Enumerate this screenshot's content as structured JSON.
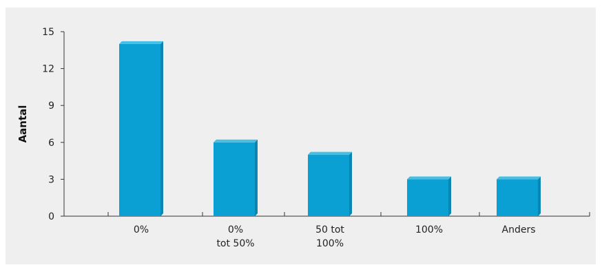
{
  "chart_data": {
    "type": "bar",
    "title": "",
    "xlabel": "",
    "ylabel": "Aantal",
    "categories": [
      [
        "0%"
      ],
      [
        "0%",
        "tot 50%"
      ],
      [
        "50 tot",
        "100%"
      ],
      [
        "100%"
      ],
      [
        "Anders"
      ]
    ],
    "values": [
      14,
      6,
      5,
      3,
      3
    ],
    "ylim": [
      0,
      15
    ],
    "yticks": [
      "0",
      "3",
      "6",
      "9",
      "12",
      "15"
    ],
    "grid": false,
    "legend": "none"
  },
  "colors": {
    "bar_front": "#0aa0d4",
    "bar_side": "#0b86b2",
    "bar_top": "#45bfe6",
    "panel_background": "#efefef",
    "axis": "#333333"
  }
}
